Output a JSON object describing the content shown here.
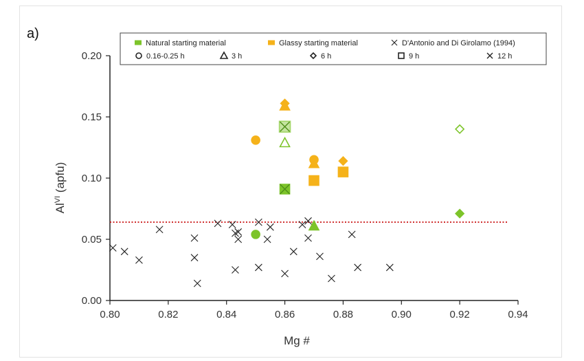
{
  "chart_data": {
    "type": "scatter",
    "panel_label": "a)",
    "title": "",
    "xlabel": "Mg #",
    "ylabel": {
      "base": "Al",
      "sup": "VI",
      "rest": " (apfu)"
    },
    "xlim": [
      0.8,
      0.94
    ],
    "ylim": [
      0.0,
      0.2
    ],
    "xticks": [
      "0.80",
      "0.82",
      "0.84",
      "0.86",
      "0.88",
      "0.90",
      "0.92",
      "0.94"
    ],
    "yticks": [
      "0.00",
      "0.05",
      "0.10",
      "0.15",
      "0.20"
    ],
    "grid": false,
    "legend_position": "top",
    "colors": {
      "natural": "#7dc42a",
      "glassy": "#f5b21a",
      "reference": "#222222",
      "threshold": "#cc1f1f",
      "axis": "#222222"
    },
    "reference_line": {
      "y": 0.064,
      "style": "dotted"
    },
    "legend": {
      "row1": [
        {
          "label": "Natural starting material",
          "marker": "square-fill",
          "color": "#7dc42a"
        },
        {
          "label": "Glassy starting material",
          "marker": "square-fill",
          "color": "#f5b21a"
        },
        {
          "label": "D'Antonio and Di Girolamo (1994)",
          "marker": "x",
          "color": "#222222"
        }
      ],
      "row2": [
        {
          "label": "0.16-0.25 h",
          "marker": "circle"
        },
        {
          "label": "3 h",
          "marker": "triangle"
        },
        {
          "label": "6 h",
          "marker": "diamond"
        },
        {
          "label": "9 h",
          "marker": "square"
        },
        {
          "label": "12 h",
          "marker": "cross"
        }
      ]
    },
    "series": [
      {
        "name": "D'Antonio and Di Girolamo (1994)",
        "marker": "x",
        "color": "#222222",
        "points": [
          [
            0.801,
            0.043
          ],
          [
            0.805,
            0.04
          ],
          [
            0.81,
            0.033
          ],
          [
            0.817,
            0.058
          ],
          [
            0.829,
            0.051
          ],
          [
            0.829,
            0.035
          ],
          [
            0.83,
            0.014
          ],
          [
            0.837,
            0.063
          ],
          [
            0.842,
            0.062
          ],
          [
            0.843,
            0.055
          ],
          [
            0.843,
            0.025
          ],
          [
            0.844,
            0.05
          ],
          [
            0.844,
            0.056
          ],
          [
            0.851,
            0.064
          ],
          [
            0.851,
            0.027
          ],
          [
            0.854,
            0.05
          ],
          [
            0.855,
            0.06
          ],
          [
            0.86,
            0.022
          ],
          [
            0.863,
            0.04
          ],
          [
            0.866,
            0.062
          ],
          [
            0.868,
            0.065
          ],
          [
            0.868,
            0.051
          ],
          [
            0.872,
            0.036
          ],
          [
            0.876,
            0.018
          ],
          [
            0.883,
            0.054
          ],
          [
            0.885,
            0.027
          ],
          [
            0.896,
            0.027
          ]
        ]
      },
      {
        "name": "Natural starting material",
        "color": "#7dc42a",
        "points": [
          {
            "x": 0.85,
            "y": 0.054,
            "marker": "circle",
            "filled": true
          },
          {
            "x": 0.86,
            "y": 0.129,
            "marker": "triangle",
            "filled": false
          },
          {
            "x": 0.86,
            "y": 0.091,
            "marker": "square",
            "filled": true
          },
          {
            "x": 0.86,
            "y": 0.091,
            "marker": "cross",
            "filled": false
          },
          {
            "x": 0.86,
            "y": 0.142,
            "marker": "square",
            "filled": true
          },
          {
            "x": 0.86,
            "y": 0.142,
            "marker": "cross",
            "filled": false
          },
          {
            "x": 0.87,
            "y": 0.061,
            "marker": "triangle",
            "filled": true
          },
          {
            "x": 0.92,
            "y": 0.14,
            "marker": "diamond",
            "filled": false
          },
          {
            "x": 0.92,
            "y": 0.071,
            "marker": "diamond",
            "filled": true
          }
        ]
      },
      {
        "name": "Glassy starting material",
        "color": "#f5b21a",
        "points": [
          {
            "x": 0.85,
            "y": 0.131,
            "marker": "circle",
            "filled": true
          },
          {
            "x": 0.86,
            "y": 0.161,
            "marker": "diamond",
            "filled": true
          },
          {
            "x": 0.86,
            "y": 0.159,
            "marker": "triangle",
            "filled": true
          },
          {
            "x": 0.87,
            "y": 0.115,
            "marker": "circle",
            "filled": true
          },
          {
            "x": 0.87,
            "y": 0.112,
            "marker": "triangle",
            "filled": true
          },
          {
            "x": 0.87,
            "y": 0.098,
            "marker": "square",
            "filled": true
          },
          {
            "x": 0.88,
            "y": 0.114,
            "marker": "diamond",
            "filled": true
          },
          {
            "x": 0.88,
            "y": 0.105,
            "marker": "square",
            "filled": true
          }
        ]
      }
    ]
  }
}
